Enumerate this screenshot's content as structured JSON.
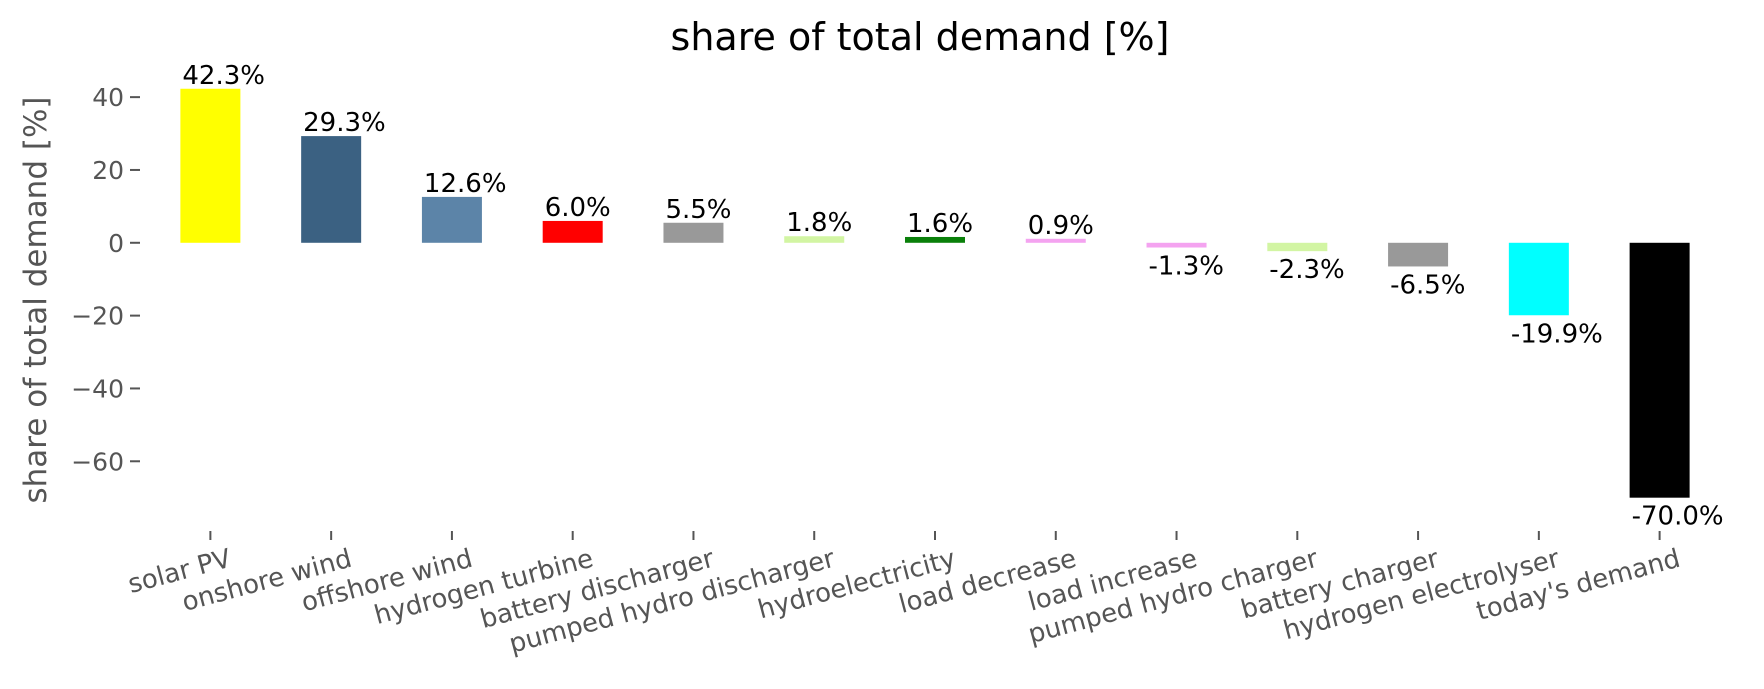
{
  "chart_data": {
    "type": "bar",
    "title": "share of total demand [%]",
    "xlabel": "",
    "ylabel": "share of total demand [%]",
    "ylim": [
      -77.5,
      48
    ],
    "yticks": [
      40,
      20,
      0,
      -20,
      -40,
      -60
    ],
    "ytick_labels": [
      "40",
      "20",
      "0",
      "−20",
      "−40",
      "−60"
    ],
    "grid": false,
    "categories": [
      "solar PV",
      "onshore wind",
      "offshore wind",
      "hydrogen turbine",
      "battery discharger",
      "pumped hydro discharger",
      "hydroelectricity",
      "load decrease",
      "load increase",
      "pumped hydro charger",
      "battery charger",
      "hydrogen electrolyser",
      "today's demand"
    ],
    "values": [
      42.3,
      29.3,
      12.6,
      6.0,
      5.5,
      1.8,
      1.6,
      0.9,
      -1.3,
      -2.3,
      -6.5,
      -19.9,
      -70.0
    ],
    "labels": [
      "42.3%",
      "29.3%",
      "12.6%",
      "6.0%",
      "5.5%",
      "1.8%",
      "1.6%",
      "0.9%",
      "-1.3%",
      "-2.3%",
      "-6.5%",
      "-19.9%",
      "-70.0%"
    ],
    "colors": [
      "#ffff00",
      "#3b6182",
      "#5c84a8",
      "#ff0000",
      "#999999",
      "#d2f5a3",
      "#0a800a",
      "#f4a3f0",
      "#f4a3f0",
      "#d2f5a3",
      "#999999",
      "#00ffff",
      "#000000"
    ]
  }
}
